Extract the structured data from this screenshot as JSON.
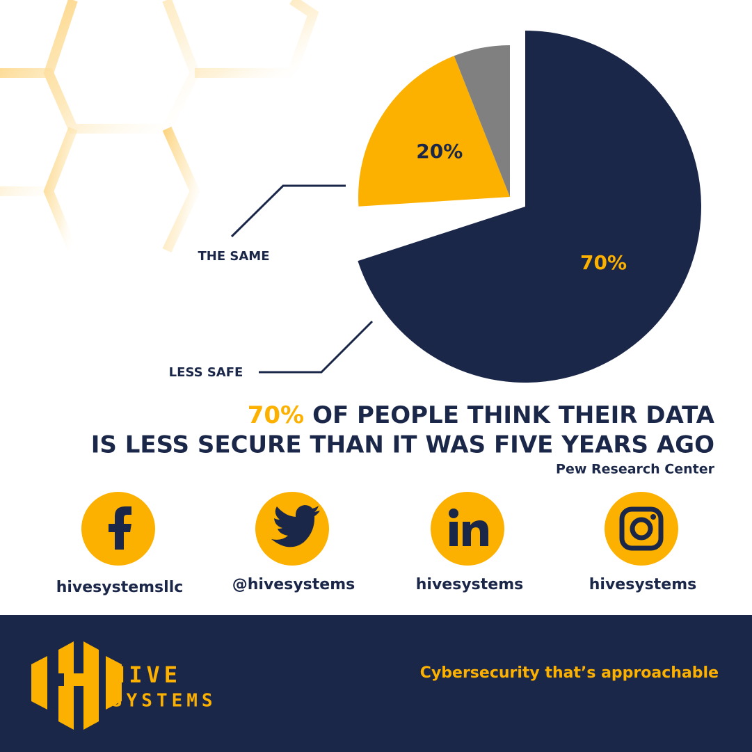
{
  "chart_data": {
    "type": "pie",
    "categories": [
      "LESS SAFE",
      "THE SAME",
      null
    ],
    "values": [
      70,
      20,
      6
    ],
    "value_labels": [
      "70%",
      "20%",
      null
    ],
    "colors": [
      "#1b2749",
      "#fcb000",
      "#808080"
    ],
    "title_highlight": "70%",
    "title": [
      "OF PEOPLE THINK THEIR DATA",
      "IS LESS SECURE THAN IT WAS FIVE YEARS AGO"
    ],
    "source": "Pew Research Center"
  },
  "social": [
    {
      "network": "facebook",
      "handle": "hivesystemsllc"
    },
    {
      "network": "twitter",
      "handle": "@hivesystems"
    },
    {
      "network": "linkedin",
      "handle": "hivesystems"
    },
    {
      "network": "instagram",
      "handle": "hivesystems"
    }
  ],
  "footer": {
    "brand": "HIVE",
    "brand_sub": "SYSTEMS",
    "tagline": "Cybersecurity that’s approachable"
  }
}
